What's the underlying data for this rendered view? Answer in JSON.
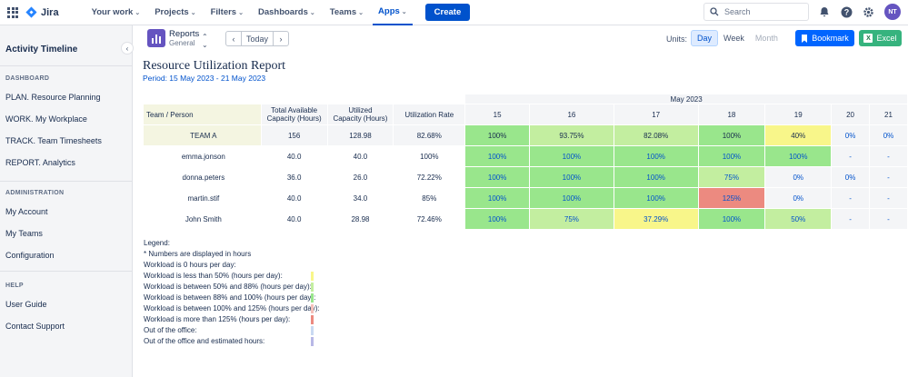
{
  "topnav": {
    "logo": "Jira",
    "items": [
      {
        "label": "Your work"
      },
      {
        "label": "Projects"
      },
      {
        "label": "Filters"
      },
      {
        "label": "Dashboards"
      },
      {
        "label": "Teams"
      },
      {
        "label": "Apps",
        "active": true
      }
    ],
    "create_label": "Create",
    "search_placeholder": "Search",
    "avatar_initials": "NT"
  },
  "sidebar": {
    "title": "Activity Timeline",
    "sections": [
      {
        "heading": "DASHBOARD",
        "items": [
          "PLAN. Resource Planning",
          "WORK. My Workplace",
          "TRACK. Team Timesheets",
          "REPORT. Analytics"
        ]
      },
      {
        "heading": "ADMINISTRATION",
        "items": [
          "My Account",
          "My Teams",
          "Configuration"
        ]
      },
      {
        "heading": "HELP",
        "items": [
          "User Guide",
          "Contact Support"
        ]
      }
    ]
  },
  "toolbar": {
    "reports_name": "Reports",
    "reports_sub": "General",
    "today_label": "Today",
    "units_label": "Units:",
    "units": [
      "Day",
      "Week",
      "Month"
    ],
    "units_selected": "Day",
    "bookmark_label": "Bookmark",
    "excel_label": "Excel"
  },
  "report": {
    "title": "Resource Utilization Report",
    "period": "Period: 15 May 2023 - 21 May 2023",
    "month": "May 2023",
    "headers": {
      "person": "Team / Person",
      "capacity_line1": "Total Available",
      "capacity_line2": "Capacity (Hours)",
      "utilized_line1": "Utilized",
      "utilized_line2": "Capacity (Hours)",
      "rate": "Utilization Rate"
    },
    "days": [
      "15",
      "16",
      "17",
      "18",
      "19",
      "20",
      "21"
    ],
    "rows": [
      {
        "name": "TEAM A",
        "team": true,
        "capacity": "156",
        "utilized": "128.98",
        "rate": "82.68%",
        "cells": [
          {
            "v": "100%",
            "c": "green"
          },
          {
            "v": "93.75%",
            "c": "ltgreen"
          },
          {
            "v": "82.08%",
            "c": "ltgreen"
          },
          {
            "v": "100%",
            "c": "green"
          },
          {
            "v": "40%",
            "c": "yellow"
          },
          {
            "v": "0%",
            "c": "blank"
          },
          {
            "v": "0%",
            "c": "blank"
          }
        ]
      },
      {
        "name": "emma.jonson",
        "capacity": "40.0",
        "utilized": "40.0",
        "rate": "100%",
        "cells": [
          {
            "v": "100%",
            "c": "green"
          },
          {
            "v": "100%",
            "c": "green"
          },
          {
            "v": "100%",
            "c": "green"
          },
          {
            "v": "100%",
            "c": "green"
          },
          {
            "v": "100%",
            "c": "green"
          },
          {
            "v": "-",
            "c": "blank"
          },
          {
            "v": "-",
            "c": "blank"
          }
        ]
      },
      {
        "name": "donna.peters",
        "capacity": "36.0",
        "utilized": "26.0",
        "rate": "72.22%",
        "cells": [
          {
            "v": "100%",
            "c": "green"
          },
          {
            "v": "100%",
            "c": "green"
          },
          {
            "v": "100%",
            "c": "green"
          },
          {
            "v": "75%",
            "c": "ltgreen"
          },
          {
            "v": "0%",
            "c": "blank"
          },
          {
            "v": "0%",
            "c": "blank"
          },
          {
            "v": "-",
            "c": "blank"
          }
        ]
      },
      {
        "name": "martin.stif",
        "capacity": "40.0",
        "utilized": "34.0",
        "rate": "85%",
        "cells": [
          {
            "v": "100%",
            "c": "green"
          },
          {
            "v": "100%",
            "c": "green"
          },
          {
            "v": "100%",
            "c": "green"
          },
          {
            "v": "125%",
            "c": "red"
          },
          {
            "v": "0%",
            "c": "blank"
          },
          {
            "v": "-",
            "c": "blank"
          },
          {
            "v": "-",
            "c": "blank"
          }
        ]
      },
      {
        "name": "John Smith",
        "capacity": "40.0",
        "utilized": "28.98",
        "rate": "72.46%",
        "cells": [
          {
            "v": "100%",
            "c": "green"
          },
          {
            "v": "75%",
            "c": "ltgreen"
          },
          {
            "v": "37.29%",
            "c": "yellow"
          },
          {
            "v": "100%",
            "c": "green"
          },
          {
            "v": "50%",
            "c": "ltgreen"
          },
          {
            "v": "-",
            "c": "blank"
          },
          {
            "v": "-",
            "c": "blank"
          }
        ]
      }
    ]
  },
  "legend": {
    "title": "Legend:",
    "note": "* Numbers are displayed in hours",
    "items": [
      {
        "label": "Workload is 0 hours per day:",
        "color": ""
      },
      {
        "label": "Workload is less than 50% (hours per day):",
        "color": "#f8f68a"
      },
      {
        "label": "Workload is between 50% and 88% (hours per day):",
        "color": "#c3eea0"
      },
      {
        "label": "Workload is between 88% and 100% (hours per day):",
        "color": "#99e68c"
      },
      {
        "label": "Workload is between 100% and 125% (hours per day):",
        "color": "#f5c1bb"
      },
      {
        "label": "Workload is more than 125% (hours per day):",
        "color": "#ec8a80"
      },
      {
        "label": "Out of the office:",
        "color": "#c9d9f2"
      },
      {
        "label": "Out of the office and estimated hours:",
        "color": "#b8b8e6"
      }
    ]
  }
}
